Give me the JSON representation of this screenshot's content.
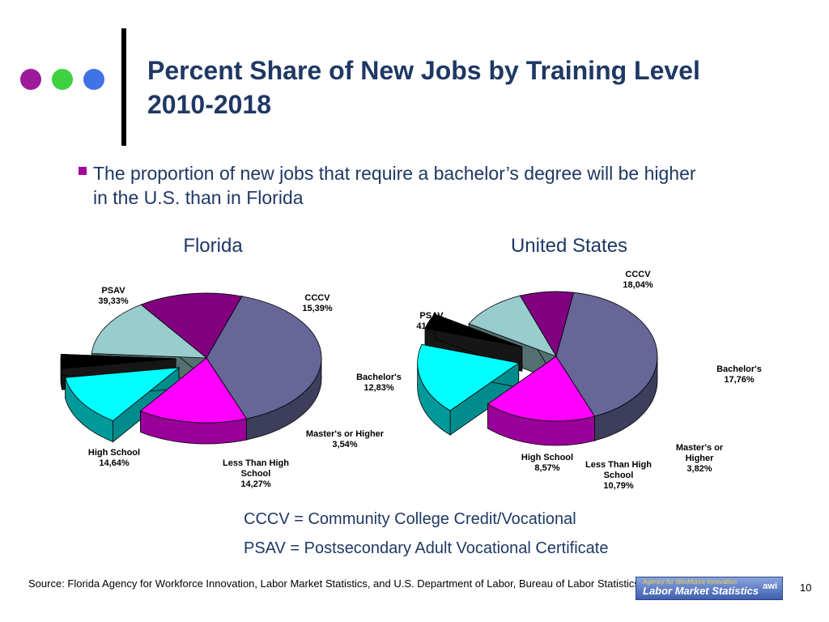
{
  "slide": {
    "title_line1": "Percent Share of New Jobs by Training Level",
    "title_line2": "2010-2018",
    "bullet_line1": "The proportion of new jobs that require a bachelor’s degree will be higher",
    "bullet_line2": "in the U.S. than in Florida",
    "definitions": [
      "CCCV = Community College Credit/Vocational",
      "PSAV = Postsecondary Adult Vocational Certificate"
    ],
    "source": "Source:  Florida Agency for Workforce Innovation, Labor Market Statistics, and U.S. Department of Labor, Bureau of Labor Statistics",
    "page_number": "10",
    "logo": {
      "top_text": "Agency for Workforce Innovation",
      "main_text": "Labor Market Statistics",
      "mark": "awi"
    },
    "decor_colors": [
      "#9b1b9b",
      "#3fd13f",
      "#3f73e6"
    ]
  },
  "chart_data": [
    {
      "type": "pie",
      "title": "Florida",
      "slices": [
        {
          "name": "PSAV",
          "value": 39.33,
          "label": "39,33%",
          "color": "#666699",
          "exploded": false
        },
        {
          "name": "CCCV",
          "value": 15.39,
          "label": "15,39%",
          "color": "#ff00ff",
          "exploded": false
        },
        {
          "name": "Bachelor's",
          "value": 12.83,
          "label": "12,83%",
          "color": "#00ffff",
          "exploded": true
        },
        {
          "name": "Master's or Higher",
          "value": 3.54,
          "label": "3,54%",
          "color": "#000000",
          "exploded": true
        },
        {
          "name": "Less Than High School",
          "value": 14.27,
          "label": "14,27%",
          "color": "#99cccc",
          "exploded": false
        },
        {
          "name": "High School",
          "value": 14.64,
          "label": "14,64%",
          "color": "#800080",
          "exploded": false
        }
      ]
    },
    {
      "type": "pie",
      "title": "United States",
      "slices": [
        {
          "name": "PSAV",
          "value": 41.02,
          "label": "41,02%",
          "color": "#666699",
          "exploded": false
        },
        {
          "name": "CCCV",
          "value": 18.04,
          "label": "18,04%",
          "color": "#ff00ff",
          "exploded": false
        },
        {
          "name": "Bachelor's",
          "value": 17.76,
          "label": "17,76%",
          "color": "#00ffff",
          "exploded": true
        },
        {
          "name": "Master's or Higher",
          "value": 3.82,
          "label": "3,82%",
          "color": "#000000",
          "exploded": true
        },
        {
          "name": "Less Than High School",
          "value": 10.79,
          "label": "10,79%",
          "color": "#99cccc",
          "exploded": false
        },
        {
          "name": "High School",
          "value": 8.57,
          "label": "8,57%",
          "color": "#800080",
          "exploded": false
        }
      ]
    }
  ]
}
